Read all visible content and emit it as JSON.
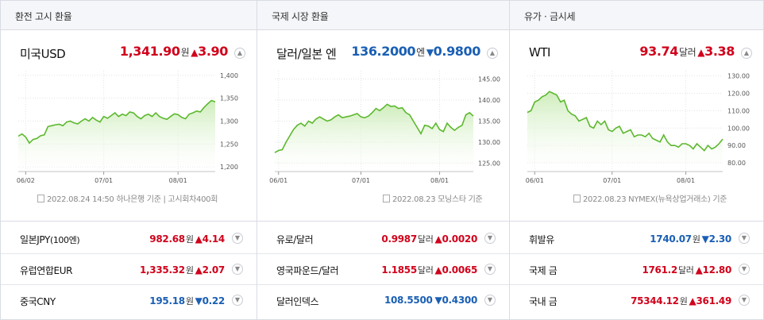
{
  "panels": [
    {
      "title": "환전 고시 환율",
      "main": {
        "name": "미국USD",
        "value": "1,341.90",
        "unit": "원",
        "dir": "up",
        "arrow": "▲",
        "change": "3.90"
      },
      "source": "2022.08.24 14:50 하나은행 기준 | 고시회차400회",
      "chart_data": {
        "type": "area",
        "x_ticks": [
          "06/02",
          "07/01",
          "08/01"
        ],
        "x_tick_index": [
          2,
          23,
          43
        ],
        "y_ticks": [
          1200,
          1250,
          1300,
          1350,
          1400
        ],
        "y_tick_labels": [
          "1,200",
          "1,250",
          "1,300",
          "1,350",
          "1,400"
        ],
        "ylim": [
          1190,
          1410
        ],
        "values": [
          1267,
          1272,
          1265,
          1252,
          1260,
          1262,
          1268,
          1270,
          1288,
          1290,
          1292,
          1293,
          1290,
          1298,
          1300,
          1296,
          1294,
          1300,
          1305,
          1300,
          1308,
          1302,
          1298,
          1310,
          1306,
          1312,
          1318,
          1310,
          1315,
          1312,
          1320,
          1318,
          1310,
          1305,
          1312,
          1315,
          1310,
          1318,
          1310,
          1306,
          1304,
          1310,
          1316,
          1314,
          1308,
          1305,
          1315,
          1318,
          1322,
          1320,
          1330,
          1338,
          1345,
          1342
        ],
        "color": "#5cb82e"
      },
      "rows": [
        {
          "name": "일본JPY",
          "name_small": "(100엔)",
          "value": "982.68",
          "unit": "원",
          "dir": "up",
          "arrow": "▲",
          "change": "4.14"
        },
        {
          "name": "유럽연합EUR",
          "name_small": "",
          "value": "1,335.32",
          "unit": "원",
          "dir": "up",
          "arrow": "▲",
          "change": "2.07"
        },
        {
          "name": "중국CNY",
          "name_small": "",
          "value": "195.18",
          "unit": "원",
          "dir": "down",
          "arrow": "▼",
          "change": "0.22"
        }
      ]
    },
    {
      "title": "국제 시장 환율",
      "main": {
        "name": "달러/일본 엔",
        "value": "136.2000",
        "unit": "엔",
        "dir": "down",
        "arrow": "▼",
        "change": "0.9800"
      },
      "source": "2022.08.23 모닝스타 기준",
      "chart_data": {
        "type": "area",
        "x_ticks": [
          "06/01",
          "07/01",
          "08/01"
        ],
        "x_tick_index": [
          1,
          23,
          44
        ],
        "y_ticks": [
          125,
          130,
          135,
          140,
          145
        ],
        "y_tick_labels": [
          "125.00",
          "130.00",
          "135.00",
          "140.00",
          "145.00"
        ],
        "ylim": [
          123,
          147
        ],
        "values": [
          127.5,
          128,
          128.2,
          130,
          131.5,
          133,
          134,
          134.5,
          133.8,
          135,
          134.5,
          135.5,
          136,
          135.5,
          135,
          135.3,
          136,
          136.5,
          135.8,
          136,
          136.2,
          136.5,
          136.8,
          136,
          135.8,
          136.2,
          137,
          138,
          137.5,
          138.2,
          139,
          138.5,
          138.6,
          138,
          138.2,
          137,
          136.5,
          135,
          133.5,
          132,
          134,
          133.8,
          133.2,
          134.5,
          133,
          132.5,
          134.5,
          133.5,
          132.8,
          133.5,
          134,
          136.5,
          137,
          136.2
        ],
        "color": "#5cb82e"
      },
      "rows": [
        {
          "name": "유로/달러",
          "name_small": "",
          "value": "0.9987",
          "unit": "달러",
          "dir": "up",
          "arrow": "▲",
          "change": "0.0020"
        },
        {
          "name": "영국파운드/달러",
          "name_small": "",
          "value": "1.1855",
          "unit": "달러",
          "dir": "up",
          "arrow": "▲",
          "change": "0.0065"
        },
        {
          "name": "달러인덱스",
          "name_small": "",
          "value": "108.5500",
          "unit": "",
          "dir": "down",
          "arrow": "▼",
          "change": "0.4300"
        }
      ]
    },
    {
      "title": "유가 · 금시세",
      "main": {
        "name": "WTI",
        "value": "93.74",
        "unit": "달러",
        "dir": "up",
        "arrow": "▲",
        "change": "3.38"
      },
      "source": "2022.08.23 NYMEX(뉴욕상업거래소) 기준",
      "chart_data": {
        "type": "area",
        "x_ticks": [
          "06/01",
          "07/01",
          "08/01"
        ],
        "x_tick_index": [
          2,
          23,
          43
        ],
        "y_ticks": [
          80,
          90,
          100,
          110,
          120,
          130
        ],
        "y_tick_labels": [
          "80.00",
          "90.00",
          "100.00",
          "110.00",
          "120.00",
          "130.00"
        ],
        "ylim": [
          75,
          133
        ],
        "values": [
          109,
          110,
          115,
          116,
          118,
          119,
          121,
          120,
          119,
          115,
          116,
          110,
          108,
          107,
          104,
          105,
          106,
          101,
          100,
          104,
          102,
          104,
          99,
          98,
          100,
          101,
          97,
          98,
          99,
          95,
          96,
          96,
          95,
          97,
          94,
          93,
          92,
          96,
          92,
          90,
          90,
          89,
          91,
          91,
          90,
          88,
          91,
          89,
          87,
          90,
          88,
          89,
          91,
          93.7
        ],
        "color": "#5cb82e"
      },
      "rows": [
        {
          "name": "휘발유",
          "name_small": "",
          "value": "1740.07",
          "unit": "원",
          "dir": "down",
          "arrow": "▼",
          "change": "2.30"
        },
        {
          "name": "국제 금",
          "name_small": "",
          "value": "1761.2",
          "unit": "달러",
          "dir": "up",
          "arrow": "▲",
          "change": "12.80"
        },
        {
          "name": "국내 금",
          "name_small": "",
          "value": "75344.12",
          "unit": "원",
          "dir": "up",
          "arrow": "▲",
          "change": "361.49"
        }
      ]
    }
  ]
}
